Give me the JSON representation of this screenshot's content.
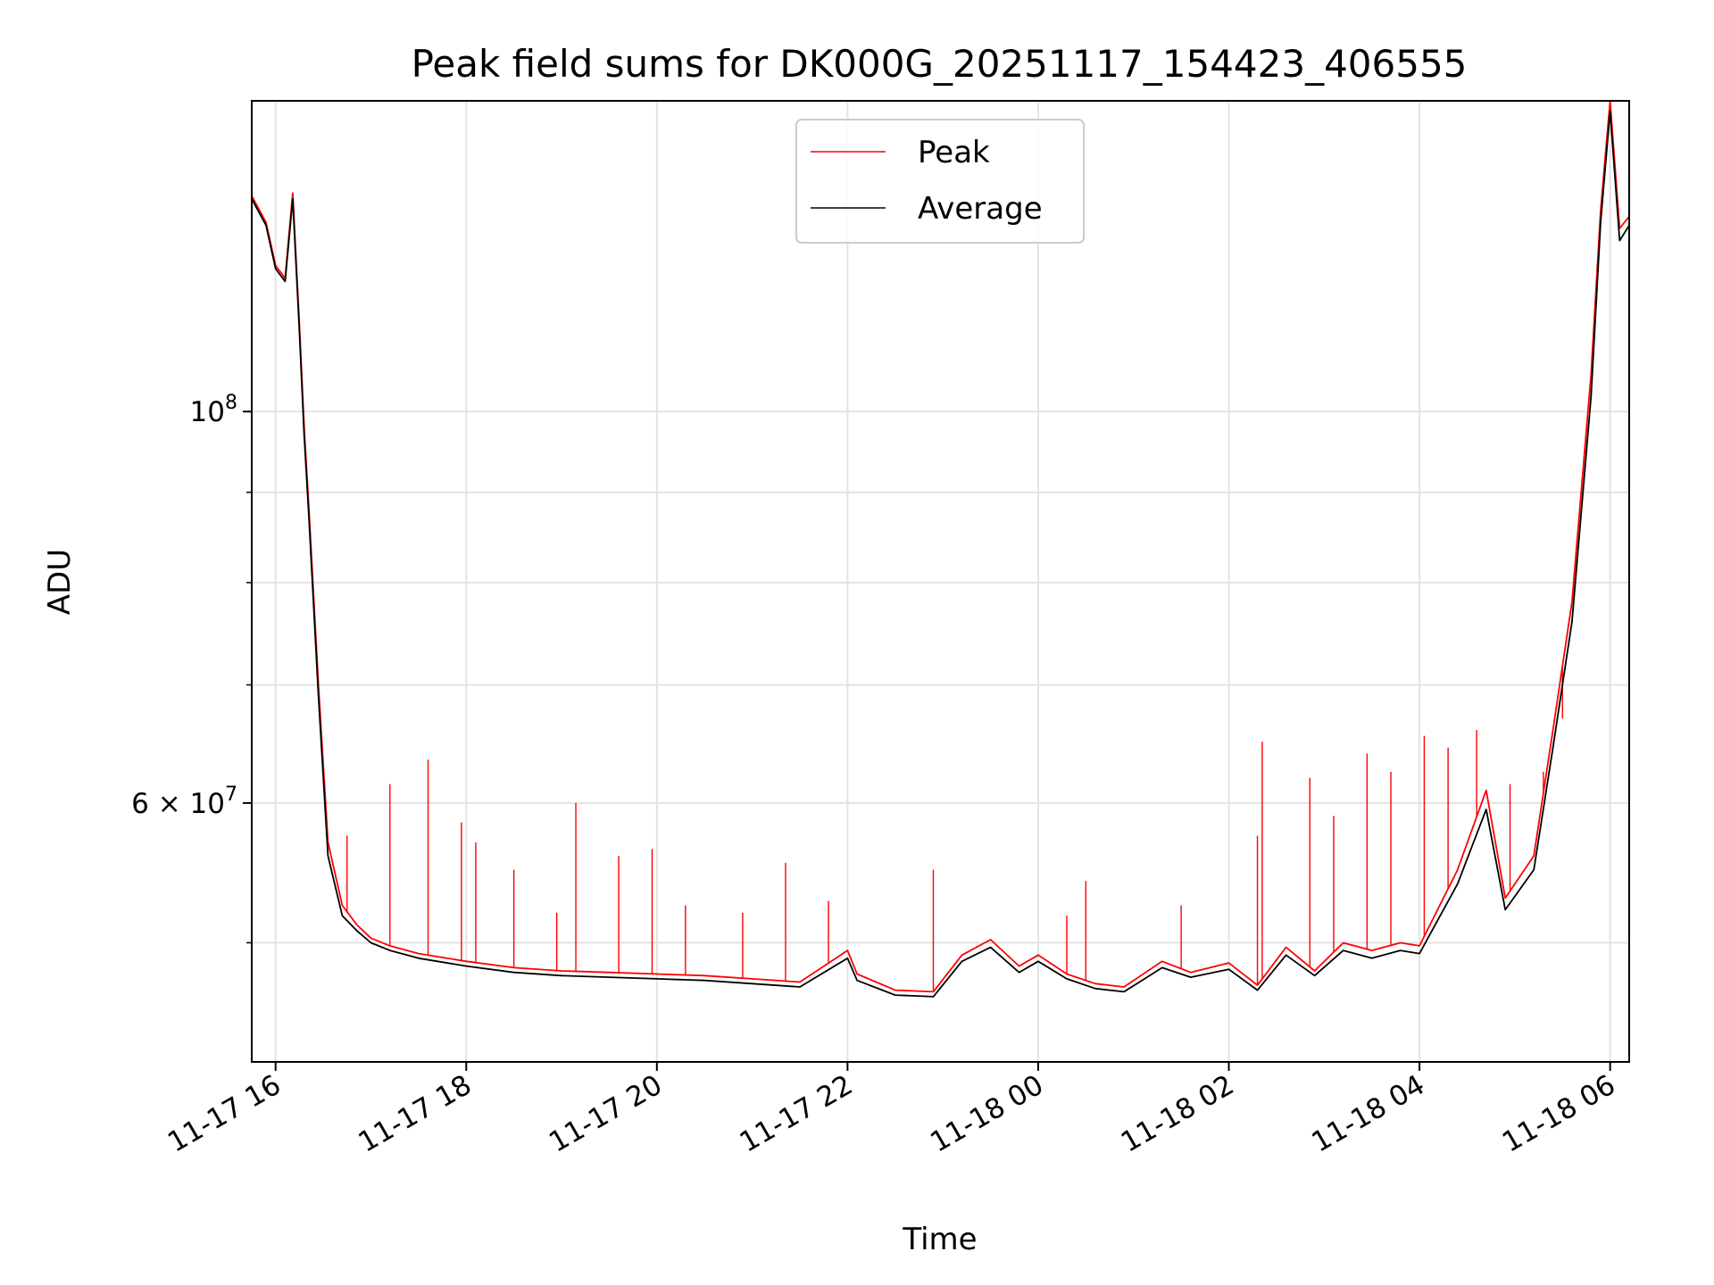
{
  "chart_data": {
    "type": "line",
    "title": "Peak field sums for DK000G_20251117_154423_406555",
    "xlabel": "Time",
    "ylabel": "ADU",
    "yscale": "log",
    "xlim": [
      -0.25,
      14.2
    ],
    "ylim": [
      42800000,
      150000000
    ],
    "grid": true,
    "legend_position": "top-center",
    "x_ticks": [
      {
        "value": 0,
        "label": "11-17 16"
      },
      {
        "value": 2,
        "label": "11-17 18"
      },
      {
        "value": 4,
        "label": "11-17 20"
      },
      {
        "value": 6,
        "label": "11-17 22"
      },
      {
        "value": 8,
        "label": "11-18 00"
      },
      {
        "value": 10,
        "label": "11-18 02"
      },
      {
        "value": 12,
        "label": "11-18 04"
      },
      {
        "value": 14,
        "label": "11-18 06"
      }
    ],
    "y_major_ticks": [
      {
        "value": 100000000,
        "base": "10",
        "exp": "8",
        "mantissa": ""
      },
      {
        "value": 60000000,
        "base": "10",
        "exp": "7",
        "mantissa": "6"
      }
    ],
    "y_minor_ticks": [
      50000000,
      70000000,
      80000000,
      90000000
    ],
    "series": [
      {
        "name": "Peak",
        "color": "#ff0000",
        "x": [
          -0.25,
          -0.1,
          0.0,
          0.1,
          0.18,
          0.25,
          0.3,
          0.35,
          0.45,
          0.55,
          0.7,
          0.85,
          1.0,
          1.2,
          1.5,
          2.0,
          2.5,
          3.0,
          3.5,
          4.0,
          4.5,
          5.0,
          5.5,
          6.0,
          6.1,
          6.5,
          6.9,
          7.2,
          7.5,
          7.8,
          8.0,
          8.3,
          8.6,
          8.9,
          9.3,
          9.6,
          10.0,
          10.3,
          10.6,
          10.9,
          11.2,
          11.5,
          11.8,
          12.0,
          12.4,
          12.7,
          12.9,
          13.2,
          13.4,
          13.6,
          13.8,
          13.9,
          14.0,
          14.1,
          14.2
        ],
        "y": [
          132500000,
          128000000,
          121000000,
          119000000,
          133000000,
          112000000,
          98000000,
          88000000,
          70000000,
          57000000,
          52500000,
          51200000,
          50300000,
          49800000,
          49300000,
          48800000,
          48400000,
          48200000,
          48100000,
          48000000,
          47900000,
          47700000,
          47500000,
          49500000,
          48000000,
          47000000,
          46900000,
          49200000,
          50200000,
          48500000,
          49200000,
          48000000,
          47400000,
          47200000,
          48800000,
          48100000,
          48700000,
          47300000,
          49700000,
          48200000,
          50000000,
          49500000,
          50000000,
          49800000,
          55000000,
          61000000,
          53000000,
          56000000,
          66000000,
          78000000,
          105000000,
          130000000,
          150000000,
          127000000,
          129000000
        ],
        "spikes": [
          {
            "x": 0.75,
            "y": 57500000
          },
          {
            "x": 1.2,
            "y": 61500000
          },
          {
            "x": 1.6,
            "y": 63500000
          },
          {
            "x": 1.95,
            "y": 58500000
          },
          {
            "x": 2.1,
            "y": 57000000
          },
          {
            "x": 2.5,
            "y": 55000000
          },
          {
            "x": 2.95,
            "y": 52000000
          },
          {
            "x": 3.15,
            "y": 60000000
          },
          {
            "x": 3.6,
            "y": 56000000
          },
          {
            "x": 3.95,
            "y": 56500000
          },
          {
            "x": 4.3,
            "y": 52500000
          },
          {
            "x": 4.9,
            "y": 52000000
          },
          {
            "x": 5.35,
            "y": 55500000
          },
          {
            "x": 5.8,
            "y": 52800000
          },
          {
            "x": 6.9,
            "y": 55000000
          },
          {
            "x": 8.3,
            "y": 51800000
          },
          {
            "x": 8.5,
            "y": 54200000
          },
          {
            "x": 9.5,
            "y": 52500000
          },
          {
            "x": 10.3,
            "y": 57500000
          },
          {
            "x": 10.35,
            "y": 65000000
          },
          {
            "x": 10.85,
            "y": 62000000
          },
          {
            "x": 11.1,
            "y": 59000000
          },
          {
            "x": 11.45,
            "y": 64000000
          },
          {
            "x": 11.7,
            "y": 62500000
          },
          {
            "x": 12.05,
            "y": 65500000
          },
          {
            "x": 12.3,
            "y": 64500000
          },
          {
            "x": 12.6,
            "y": 66000000
          },
          {
            "x": 12.95,
            "y": 61500000
          },
          {
            "x": 13.3,
            "y": 62500000
          },
          {
            "x": 13.5,
            "y": 67000000
          }
        ]
      },
      {
        "name": "Average",
        "color": "#000000",
        "x": [
          -0.25,
          -0.1,
          0.0,
          0.1,
          0.18,
          0.25,
          0.3,
          0.35,
          0.45,
          0.55,
          0.7,
          0.85,
          1.0,
          1.2,
          1.5,
          2.0,
          2.5,
          3.0,
          3.5,
          4.0,
          4.5,
          5.0,
          5.5,
          6.0,
          6.1,
          6.5,
          6.9,
          7.2,
          7.5,
          7.8,
          8.0,
          8.3,
          8.6,
          8.9,
          9.3,
          9.6,
          10.0,
          10.3,
          10.6,
          10.9,
          11.2,
          11.5,
          11.8,
          12.0,
          12.4,
          12.7,
          12.9,
          13.2,
          13.4,
          13.6,
          13.8,
          13.9,
          14.0,
          14.1,
          14.2
        ],
        "y": [
          132000000,
          127500000,
          120500000,
          118500000,
          132000000,
          111000000,
          97000000,
          87000000,
          69000000,
          56000000,
          51800000,
          50800000,
          50000000,
          49500000,
          49000000,
          48500000,
          48100000,
          47900000,
          47800000,
          47700000,
          47600000,
          47400000,
          47200000,
          49000000,
          47600000,
          46700000,
          46600000,
          48800000,
          49700000,
          48100000,
          48800000,
          47700000,
          47100000,
          46900000,
          48400000,
          47800000,
          48300000,
          47000000,
          49200000,
          47900000,
          49500000,
          49000000,
          49500000,
          49300000,
          54000000,
          59500000,
          52200000,
          55000000,
          64500000,
          76000000,
          102000000,
          128000000,
          148000000,
          125000000,
          127500000
        ]
      }
    ]
  }
}
